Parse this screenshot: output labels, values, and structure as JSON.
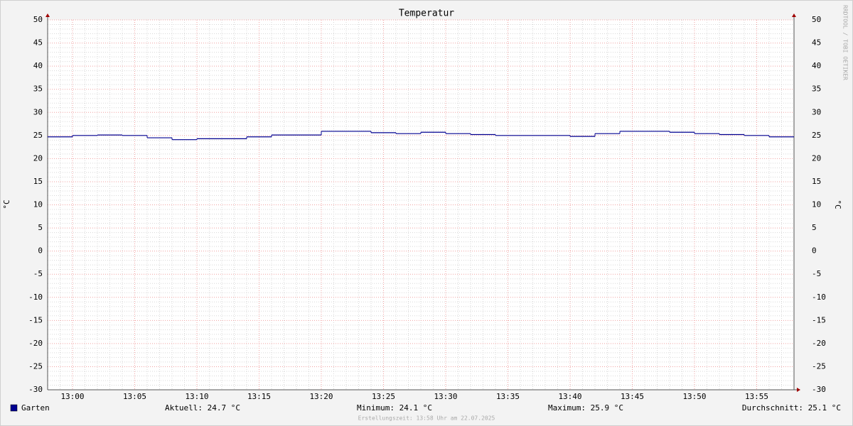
{
  "chart_data": {
    "type": "step-line",
    "title": "Temperatur",
    "y_label": "°C",
    "y2_label": "°C",
    "x": [
      "12:58",
      "13:00",
      "13:02",
      "13:04",
      "13:06",
      "13:08",
      "13:10",
      "13:12",
      "13:14",
      "13:16",
      "13:18",
      "13:20",
      "13:22",
      "13:24",
      "13:26",
      "13:28",
      "13:30",
      "13:32",
      "13:34",
      "13:36",
      "13:38",
      "13:40",
      "13:42",
      "13:44",
      "13:46",
      "13:48",
      "13:50",
      "13:52",
      "13:54",
      "13:56"
    ],
    "series": [
      {
        "name": "Garten",
        "color": "#000090",
        "values": [
          24.7,
          25.0,
          25.1,
          25.0,
          24.5,
          24.1,
          24.3,
          24.3,
          24.7,
          25.1,
          25.1,
          25.9,
          25.9,
          25.6,
          25.4,
          25.7,
          25.4,
          25.2,
          25.0,
          25.0,
          25.0,
          24.8,
          25.4,
          25.9,
          25.9,
          25.7,
          25.4,
          25.2,
          25.0,
          24.7
        ]
      }
    ],
    "xlim": [
      "12:58",
      "13:58"
    ],
    "xticks": [
      "13:00",
      "13:05",
      "13:10",
      "13:15",
      "13:20",
      "13:25",
      "13:30",
      "13:35",
      "13:40",
      "13:45",
      "13:50",
      "13:55"
    ],
    "ylim": [
      -30,
      50
    ],
    "yticks": [
      -30,
      -25,
      -20,
      -15,
      -10,
      -5,
      0,
      5,
      10,
      15,
      20,
      25,
      30,
      35,
      40,
      45,
      50
    ],
    "grid": true,
    "stats": [
      "Aktuell: 24.7 °C",
      "Minimum: 24.1 °C",
      "Maximum: 25.9 °C",
      "Durchschnitt: 25.1 °C"
    ],
    "footer": "Erstellungszeit: 13:58 Uhr am 22.07.2025",
    "watermark": "RRDTOOL / TOBI OETIKER"
  }
}
